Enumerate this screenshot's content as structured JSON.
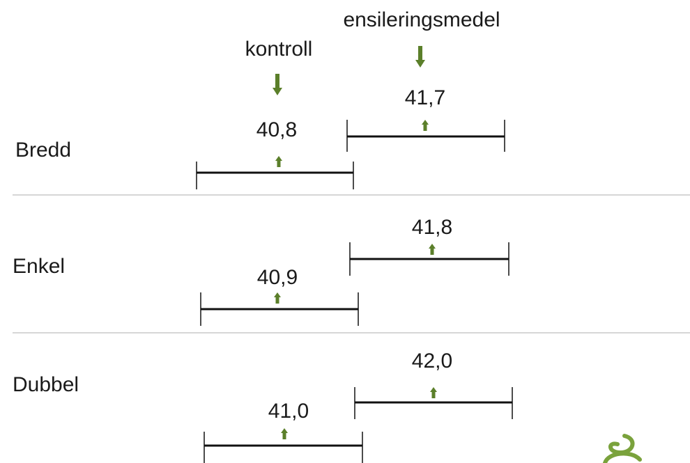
{
  "chart_data": {
    "type": "interval",
    "legend_labels": {
      "control": "kontroll",
      "treatment": "ensileringsmedel"
    },
    "categories": [
      "Bredd",
      "Enkel",
      "Dubbel"
    ],
    "series": [
      {
        "key": "control",
        "name": "kontroll",
        "points": [
          {
            "value": 40.8,
            "label": "40,8"
          },
          {
            "value": 40.9,
            "label": "40,9"
          },
          {
            "value": 41.0,
            "label": "41,0"
          }
        ]
      },
      {
        "key": "treatment",
        "name": "ensileringsmedel",
        "points": [
          {
            "value": 41.7,
            "label": "41,7"
          },
          {
            "value": 41.8,
            "label": "41,8"
          },
          {
            "value": 42.0,
            "label": "42,0"
          }
        ]
      }
    ],
    "colors": {
      "arrow": "#5b7f2a",
      "bar": "#111111",
      "divider": "#c8c8c8",
      "logo": "#7aa23c"
    }
  }
}
